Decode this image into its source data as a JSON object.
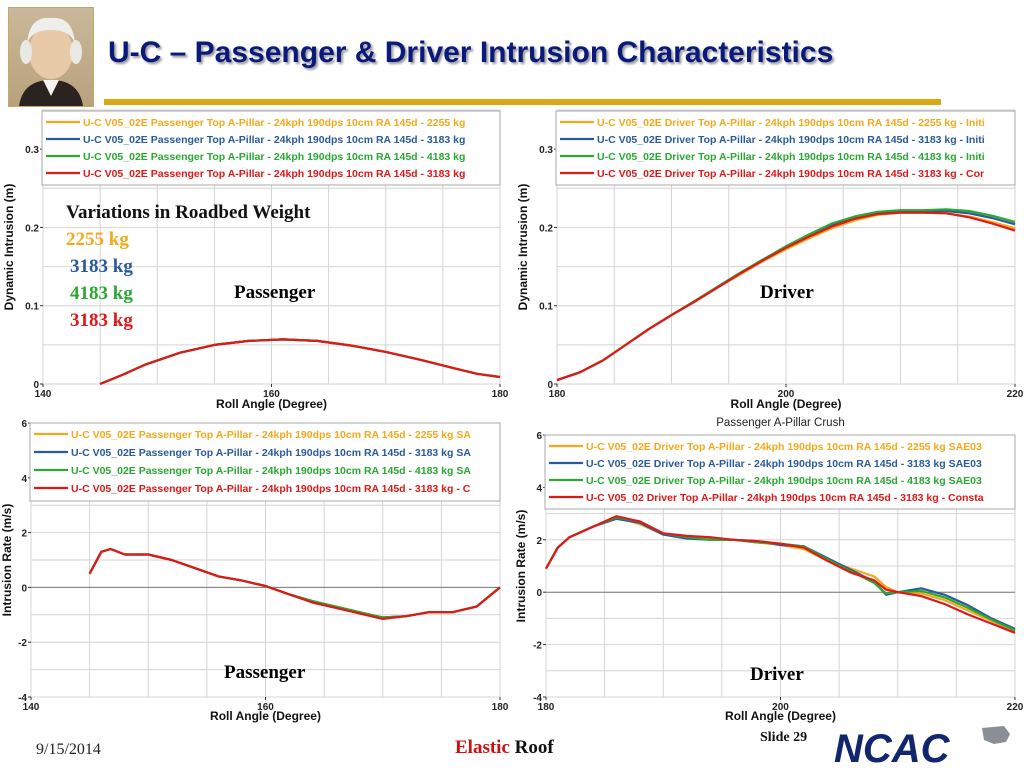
{
  "title": "U-C – Passenger & Driver Intrusion Characteristics",
  "footer": {
    "date": "9/15/2014",
    "title_part1": "Elastic",
    "title_part2": "Roof",
    "slide": "Slide 29",
    "logo_text": "NCAC"
  },
  "variations": {
    "title": "Variations in Roadbed Weight",
    "items": [
      {
        "label": "2255 kg",
        "color": "#f5a81c"
      },
      {
        "label": "3183 kg",
        "color": "#2a5a9a"
      },
      {
        "label": "4183 kg",
        "color": "#2aa832"
      },
      {
        "label": "3183 kg",
        "color": "#e01818"
      }
    ]
  },
  "chart_data": [
    {
      "id": "c1",
      "type": "line",
      "annotation": "Passenger",
      "title": "",
      "xlabel": "Roll Angle (Degree)",
      "ylabel": "Dynamic Intrusion (m)",
      "xlim": [
        140,
        180
      ],
      "ylim": [
        0,
        0.35
      ],
      "xticks": [
        140,
        160,
        180
      ],
      "xtick_labels": [
        "140",
        "160",
        "180"
      ],
      "yticks": [
        0,
        0.1,
        0.2,
        0.3
      ],
      "ytick_labels": [
        "0",
        "0.1",
        "0.2",
        "0.3"
      ],
      "grid": true,
      "legend_position": "top",
      "series": [
        {
          "name": "U-C V05_02E Passenger Top A-Pillar - 24kph 190dps 10cm RA 145d - 2255 kg",
          "color": "#f5a81c",
          "x": [
            145,
            147,
            149,
            152,
            155,
            158,
            161,
            164,
            167,
            170,
            173,
            176,
            178,
            180
          ],
          "y": [
            0,
            0.012,
            0.025,
            0.04,
            0.05,
            0.055,
            0.057,
            0.055,
            0.049,
            0.041,
            0.031,
            0.02,
            0.013,
            0.009
          ]
        },
        {
          "name": "U-C V05_02E Passenger Top A-Pillar - 24kph 190dps 10cm RA 145d - 3183 kg",
          "color": "#2a5a9a",
          "x": [
            145,
            147,
            149,
            152,
            155,
            158,
            161,
            164,
            167,
            170,
            173,
            176,
            178,
            180
          ],
          "y": [
            0,
            0.012,
            0.025,
            0.04,
            0.05,
            0.055,
            0.057,
            0.055,
            0.049,
            0.041,
            0.031,
            0.02,
            0.013,
            0.009
          ]
        },
        {
          "name": "U-C V05_02E Passenger Top A-Pillar - 24kph 190dps 10cm RA 145d - 4183 kg",
          "color": "#2aa832",
          "x": [
            145,
            147,
            149,
            152,
            155,
            158,
            161,
            164,
            167,
            170,
            173,
            176,
            178,
            180
          ],
          "y": [
            0,
            0.012,
            0.025,
            0.04,
            0.05,
            0.055,
            0.057,
            0.055,
            0.049,
            0.041,
            0.031,
            0.02,
            0.013,
            0.009
          ]
        },
        {
          "name": "U-C V05_02E Passenger Top A-Pillar - 24kph 190dps 10cm RA 145d - 3183 kg",
          "color": "#e01818",
          "x": [
            145,
            147,
            149,
            152,
            155,
            158,
            161,
            164,
            167,
            170,
            173,
            176,
            178,
            180
          ],
          "y": [
            0,
            0.012,
            0.025,
            0.04,
            0.05,
            0.055,
            0.057,
            0.055,
            0.049,
            0.041,
            0.031,
            0.02,
            0.013,
            0.009
          ]
        }
      ]
    },
    {
      "id": "c2",
      "type": "line",
      "annotation": "Driver",
      "title": "",
      "xlabel": "Roll Angle (Degree)",
      "ylabel": "Dynamic Intrusion (m)",
      "xlim": [
        180,
        220
      ],
      "ylim": [
        0,
        0.35
      ],
      "xticks": [
        180,
        200,
        220
      ],
      "xtick_labels": [
        "180",
        "200",
        "220"
      ],
      "yticks": [
        0,
        0.1,
        0.2,
        0.3
      ],
      "ytick_labels": [
        "0",
        "0.1",
        "0.2",
        "0.3"
      ],
      "grid": true,
      "legend_position": "top",
      "series": [
        {
          "name": "U-C V05_02E Driver Top A-Pillar - 24kph 190dps 10cm RA 145d - 2255 kg - Initi",
          "color": "#f5a81c",
          "x": [
            180,
            182,
            184,
            186,
            188,
            190,
            192,
            194,
            196,
            198,
            200,
            202,
            204,
            206,
            208,
            210,
            212,
            214,
            216,
            218,
            220
          ],
          "y": [
            0.005,
            0.015,
            0.03,
            0.05,
            0.07,
            0.088,
            0.105,
            0.123,
            0.14,
            0.157,
            0.172,
            0.186,
            0.199,
            0.209,
            0.216,
            0.219,
            0.219,
            0.218,
            0.214,
            0.207,
            0.199
          ]
        },
        {
          "name": "U-C V05_02E Driver Top A-Pillar - 24kph 190dps 10cm RA 145d - 3183 kg - Initi",
          "color": "#2a5a9a",
          "x": [
            180,
            182,
            184,
            186,
            188,
            190,
            192,
            194,
            196,
            198,
            200,
            202,
            204,
            206,
            208,
            210,
            212,
            214,
            216,
            218,
            220
          ],
          "y": [
            0.005,
            0.015,
            0.03,
            0.05,
            0.07,
            0.088,
            0.105,
            0.124,
            0.142,
            0.159,
            0.175,
            0.19,
            0.203,
            0.213,
            0.219,
            0.221,
            0.221,
            0.221,
            0.218,
            0.212,
            0.204
          ]
        },
        {
          "name": "U-C V05_02E Driver Top A-Pillar - 24kph 190dps 10cm RA 145d - 4183 kg - Initi",
          "color": "#2aa832",
          "x": [
            180,
            182,
            184,
            186,
            188,
            190,
            192,
            194,
            196,
            198,
            200,
            202,
            204,
            206,
            208,
            210,
            212,
            214,
            216,
            218,
            220
          ],
          "y": [
            0.005,
            0.015,
            0.03,
            0.05,
            0.07,
            0.088,
            0.106,
            0.124,
            0.142,
            0.159,
            0.176,
            0.191,
            0.205,
            0.214,
            0.22,
            0.222,
            0.222,
            0.223,
            0.221,
            0.215,
            0.207
          ]
        },
        {
          "name": "U-C V05_02E Driver Top A-Pillar - 24kph 190dps 10cm RA 145d - 3183 kg - Cor",
          "color": "#e01818",
          "x": [
            180,
            182,
            184,
            186,
            188,
            190,
            192,
            194,
            196,
            198,
            200,
            202,
            204,
            206,
            208,
            210,
            212,
            214,
            216,
            218,
            220
          ],
          "y": [
            0.005,
            0.015,
            0.03,
            0.05,
            0.07,
            0.088,
            0.105,
            0.123,
            0.141,
            0.158,
            0.174,
            0.188,
            0.201,
            0.211,
            0.217,
            0.219,
            0.219,
            0.218,
            0.213,
            0.205,
            0.196
          ]
        }
      ]
    },
    {
      "id": "c3",
      "type": "line",
      "annotation": "Passenger",
      "title": "",
      "xlabel": "Roll Angle (Degree)",
      "ylabel": "Intrusion Rate (m/s)",
      "xlim": [
        140,
        180
      ],
      "ylim": [
        -4,
        6
      ],
      "xticks": [
        140,
        160,
        180
      ],
      "xtick_labels": [
        "140",
        "160",
        "180"
      ],
      "yticks": [
        -4,
        -2,
        0,
        2,
        4,
        6
      ],
      "ytick_labels": [
        "-4",
        "-2",
        "0",
        "2",
        "4",
        "6"
      ],
      "grid": true,
      "legend_position": "top",
      "series": [
        {
          "name": "U-C V05_02E Passenger Top A-Pillar - 24kph 190dps 10cm RA 145d - 2255 kg SA",
          "color": "#f5a81c",
          "x": [
            145,
            146,
            146.8,
            148,
            150,
            152,
            154,
            156,
            158,
            160,
            162,
            164,
            166,
            168,
            170,
            172,
            174,
            176,
            178,
            180
          ],
          "y": [
            0.5,
            1.3,
            1.4,
            1.2,
            1.2,
            1.0,
            0.7,
            0.4,
            0.25,
            0.05,
            -0.25,
            -0.5,
            -0.7,
            -0.9,
            -1.1,
            -1.05,
            -0.9,
            -0.9,
            -0.7,
            0.0
          ]
        },
        {
          "name": "U-C V05_02E Passenger Top A-Pillar - 24kph 190dps 10cm RA 145d - 3183 kg SA",
          "color": "#2a5a9a",
          "x": [
            145,
            146,
            146.8,
            148,
            150,
            152,
            154,
            156,
            158,
            160,
            162,
            164,
            166,
            168,
            170,
            172,
            174,
            176,
            178,
            180
          ],
          "y": [
            0.5,
            1.3,
            1.4,
            1.2,
            1.2,
            1.0,
            0.7,
            0.4,
            0.25,
            0.05,
            -0.25,
            -0.5,
            -0.72,
            -0.92,
            -1.1,
            -1.05,
            -0.9,
            -0.9,
            -0.7,
            0.0
          ]
        },
        {
          "name": "U-C V05_02E Passenger Top A-Pillar - 24kph 190dps 10cm RA 145d - 4183 kg SA",
          "color": "#2aa832",
          "x": [
            145,
            146,
            146.8,
            148,
            150,
            152,
            154,
            156,
            158,
            160,
            162,
            164,
            166,
            168,
            170,
            172,
            174,
            176,
            178,
            180
          ],
          "y": [
            0.5,
            1.3,
            1.4,
            1.2,
            1.2,
            1.0,
            0.7,
            0.4,
            0.25,
            0.05,
            -0.25,
            -0.5,
            -0.7,
            -0.9,
            -1.1,
            -1.05,
            -0.9,
            -0.9,
            -0.7,
            0.0
          ]
        },
        {
          "name": "U-C V05_02E Passenger Top A-Pillar - 24kph 190dps 10cm RA 145d - 3183 kg - C",
          "color": "#e01818",
          "x": [
            145,
            146,
            146.8,
            148,
            150,
            152,
            154,
            156,
            158,
            160,
            162,
            164,
            166,
            168,
            170,
            172,
            174,
            176,
            178,
            180
          ],
          "y": [
            0.5,
            1.3,
            1.4,
            1.2,
            1.2,
            1.0,
            0.7,
            0.4,
            0.25,
            0.05,
            -0.25,
            -0.55,
            -0.75,
            -0.95,
            -1.15,
            -1.05,
            -0.9,
            -0.9,
            -0.7,
            0.0
          ]
        }
      ]
    },
    {
      "id": "c4",
      "type": "line",
      "annotation": "Driver",
      "title": "Passenger A-Pillar Crush",
      "xlabel": "Roll Angle (Degree)",
      "ylabel": "Intrusion Rate (m/s)",
      "xlim": [
        180,
        220
      ],
      "ylim": [
        -4,
        6
      ],
      "xticks": [
        180,
        200,
        220
      ],
      "xtick_labels": [
        "180",
        "200",
        "220"
      ],
      "yticks": [
        -4,
        -2,
        0,
        2,
        4,
        6
      ],
      "ytick_labels": [
        "-4",
        "-2",
        "0",
        "2",
        "4",
        "6"
      ],
      "grid": true,
      "legend_position": "top",
      "series": [
        {
          "name": "U-C V05_02E Driver Top A-Pillar - 24kph 190dps 10cm RA 145d - 2255 kg SAE03",
          "color": "#f5a81c",
          "x": [
            180,
            181,
            182,
            184,
            186,
            188,
            190,
            192,
            194,
            196,
            198,
            200,
            202,
            204,
            206,
            208,
            209,
            210,
            212,
            214,
            216,
            218,
            220
          ],
          "y": [
            0.9,
            1.7,
            2.1,
            2.5,
            2.85,
            2.6,
            2.2,
            2.1,
            2.05,
            2.0,
            1.9,
            1.8,
            1.65,
            1.2,
            0.9,
            0.6,
            0.2,
            0.0,
            -0.05,
            -0.3,
            -0.7,
            -1.1,
            -1.5
          ]
        },
        {
          "name": "U-C V05_02E Driver Top A-Pillar - 24kph 190dps 10cm RA 145d - 3183 kg SAE03",
          "color": "#2a5a9a",
          "x": [
            180,
            181,
            182,
            184,
            186,
            188,
            190,
            192,
            194,
            196,
            198,
            200,
            202,
            204,
            206,
            208,
            209,
            210,
            212,
            214,
            216,
            218,
            220
          ],
          "y": [
            0.9,
            1.7,
            2.1,
            2.5,
            2.8,
            2.65,
            2.2,
            2.05,
            2.0,
            2.0,
            1.95,
            1.8,
            1.75,
            1.3,
            0.85,
            0.4,
            -0.1,
            0.0,
            0.15,
            -0.1,
            -0.5,
            -1.0,
            -1.4
          ]
        },
        {
          "name": "U-C V05_02E Driver Top A-Pillar - 24kph 190dps 10cm RA 145d - 4183 kg SAE03",
          "color": "#2aa832",
          "x": [
            180,
            181,
            182,
            184,
            186,
            188,
            190,
            192,
            194,
            196,
            198,
            200,
            202,
            204,
            206,
            208,
            209,
            210,
            212,
            214,
            216,
            218,
            220
          ],
          "y": [
            0.9,
            1.7,
            2.1,
            2.5,
            2.85,
            2.7,
            2.25,
            2.1,
            2.0,
            2.0,
            1.9,
            1.85,
            1.75,
            1.25,
            0.8,
            0.35,
            -0.05,
            0.0,
            0.05,
            -0.2,
            -0.6,
            -1.05,
            -1.45
          ]
        },
        {
          "name": "U-C V05_02 Driver Top A-Pillar - 24kph 190dps 10cm RA 145d - 3183 kg - Consta",
          "color": "#e01818",
          "x": [
            180,
            181,
            182,
            184,
            186,
            188,
            190,
            192,
            194,
            196,
            198,
            200,
            202,
            204,
            206,
            208,
            209,
            210,
            212,
            214,
            216,
            218,
            220
          ],
          "y": [
            0.9,
            1.7,
            2.1,
            2.5,
            2.9,
            2.7,
            2.25,
            2.15,
            2.1,
            2.0,
            1.95,
            1.85,
            1.7,
            1.2,
            0.75,
            0.45,
            0.1,
            0.0,
            -0.15,
            -0.45,
            -0.85,
            -1.2,
            -1.55
          ]
        }
      ]
    }
  ]
}
